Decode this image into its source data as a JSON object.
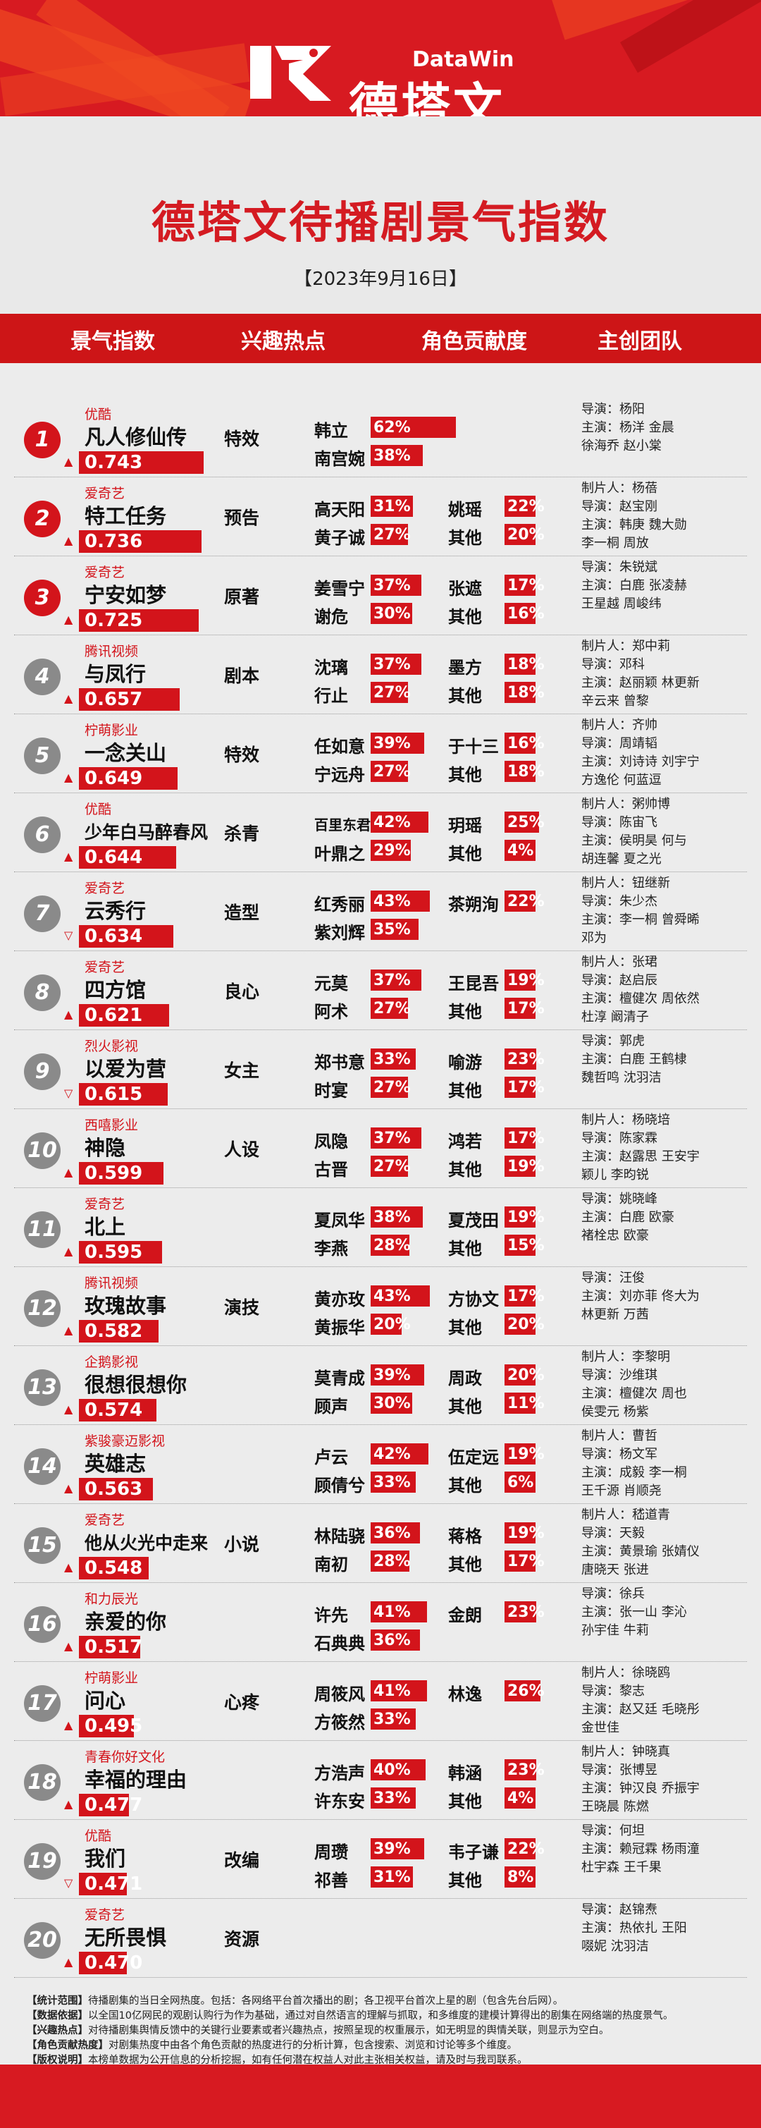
{
  "brand": {
    "name": "德塔文",
    "en": "DataWin"
  },
  "title": "德塔文待播剧景气指数",
  "date": "【2023年9月16日】",
  "columns": [
    "景气指数",
    "兴趣热点",
    "角色贡献度",
    "主创团队"
  ],
  "rows": [
    {
      "rank": "1",
      "platform": "优酷",
      "name": "凡人修仙传",
      "score": "0.743",
      "trend": "▲",
      "tag": "特效",
      "roles": [
        {
          "name": "韩立",
          "pct": "62%"
        },
        {
          "name": "南宫婉",
          "pct": "38%"
        }
      ],
      "crew": [
        "导演：杨阳",
        "主演：杨洋  金晨",
        "         徐海乔  赵小棠"
      ]
    },
    {
      "rank": "2",
      "platform": "爱奇艺",
      "name": "特工任务",
      "score": "0.736",
      "trend": "▲",
      "tag": "预告",
      "roles": [
        {
          "name": "高天阳",
          "pct": "31%"
        },
        {
          "name": "黄子诚",
          "pct": "27%"
        },
        {
          "name": "姚瑶",
          "pct": "22%"
        },
        {
          "name": "其他",
          "pct": "20%"
        }
      ],
      "crew": [
        "制片人：杨蓓",
        "导演：赵宝刚",
        "主演：韩庚  魏大勋",
        "         李一桐  周放"
      ]
    },
    {
      "rank": "3",
      "platform": "爱奇艺",
      "name": "宁安如梦",
      "score": "0.725",
      "trend": "▲",
      "tag": "原著",
      "roles": [
        {
          "name": "姜雪宁",
          "pct": "37%"
        },
        {
          "name": "谢危",
          "pct": "30%"
        },
        {
          "name": "张遮",
          "pct": "17%"
        },
        {
          "name": "其他",
          "pct": "16%"
        }
      ],
      "crew": [
        "导演：朱锐斌",
        "主演：白鹿  张凌赫",
        "         王星越  周峻纬"
      ]
    },
    {
      "rank": "4",
      "platform": "腾讯视频",
      "name": "与凤行",
      "score": "0.657",
      "trend": "▲",
      "tag": "剧本",
      "roles": [
        {
          "name": "沈璃",
          "pct": "37%"
        },
        {
          "name": "行止",
          "pct": "27%"
        },
        {
          "name": "墨方",
          "pct": "18%"
        },
        {
          "name": "其他",
          "pct": "18%"
        }
      ],
      "crew": [
        "制片人：郑中莉",
        "导演：邓科",
        "主演：赵丽颖  林更新",
        "         辛云来  曾黎"
      ]
    },
    {
      "rank": "5",
      "platform": "柠萌影业",
      "name": "一念关山",
      "score": "0.649",
      "trend": "▲",
      "tag": "特效",
      "roles": [
        {
          "name": "任如意",
          "pct": "39%"
        },
        {
          "name": "宁远舟",
          "pct": "27%"
        },
        {
          "name": "于十三",
          "pct": "16%"
        },
        {
          "name": "其他",
          "pct": "18%"
        }
      ],
      "crew": [
        "制片人：齐帅",
        "导演：周靖韬",
        "主演：刘诗诗  刘宇宁",
        "         方逸伦  何蓝逗"
      ]
    },
    {
      "rank": "6",
      "platform": "优酷",
      "name": "少年白马醉春风",
      "score": "0.644",
      "trend": "▲",
      "tag": "杀青",
      "roles": [
        {
          "name": "百里东君",
          "pct": "42%"
        },
        {
          "name": "叶鼎之",
          "pct": "29%"
        },
        {
          "name": "玥瑶",
          "pct": "25%"
        },
        {
          "name": "其他",
          "pct": "4%"
        }
      ],
      "crew": [
        "制片人：粥帅博",
        "导演：陈宙飞",
        "主演：侯明昊  何与",
        "         胡连馨  夏之光"
      ]
    },
    {
      "rank": "7",
      "platform": "爱奇艺",
      "name": "云秀行",
      "score": "0.634",
      "trend": "▽",
      "tag": "造型",
      "roles": [
        {
          "name": "红秀丽",
          "pct": "43%"
        },
        {
          "name": "紫刘辉",
          "pct": "35%"
        },
        {
          "name": "茶朔洵",
          "pct": "22%"
        }
      ],
      "crew": [
        "制片人：钮继新",
        "导演：朱少杰",
        "主演：李一桐  曾舜晞",
        "         邓为"
      ]
    },
    {
      "rank": "8",
      "platform": "爱奇艺",
      "name": "四方馆",
      "score": "0.621",
      "trend": "▲",
      "tag": "良心",
      "roles": [
        {
          "name": "元莫",
          "pct": "37%"
        },
        {
          "name": "阿术",
          "pct": "27%"
        },
        {
          "name": "王昆吾",
          "pct": "19%"
        },
        {
          "name": "其他",
          "pct": "17%"
        }
      ],
      "crew": [
        "制片人：张珺",
        "导演：赵启辰",
        "主演：檀健次  周依然",
        "         杜淳  阚清子"
      ]
    },
    {
      "rank": "9",
      "platform": "烈火影视",
      "name": "以爱为营",
      "score": "0.615",
      "trend": "▽",
      "tag": "女主",
      "roles": [
        {
          "name": "郑书意",
          "pct": "33%"
        },
        {
          "name": "时宴",
          "pct": "27%"
        },
        {
          "name": "喻游",
          "pct": "23%"
        },
        {
          "name": "其他",
          "pct": "17%"
        }
      ],
      "crew": [
        "导演：郭虎",
        "主演：白鹿  王鹤棣",
        "         魏哲鸣  沈羽洁"
      ]
    },
    {
      "rank": "10",
      "platform": "西嘻影业",
      "name": "神隐",
      "score": "0.599",
      "trend": "▲",
      "tag": "人设",
      "roles": [
        {
          "name": "凤隐",
          "pct": "37%"
        },
        {
          "name": "古晋",
          "pct": "27%"
        },
        {
          "name": "鸿若",
          "pct": "17%"
        },
        {
          "name": "其他",
          "pct": "19%"
        }
      ],
      "crew": [
        "制片人：杨晓培",
        "导演：陈家霖",
        "主演：赵露思  王安宇",
        "         颖儿  李昀锐"
      ]
    },
    {
      "rank": "11",
      "platform": "爱奇艺",
      "name": "北上",
      "score": "0.595",
      "trend": "▲",
      "tag": "",
      "roles": [
        {
          "name": "夏凤华",
          "pct": "38%"
        },
        {
          "name": "李燕",
          "pct": "28%"
        },
        {
          "name": "夏茂田",
          "pct": "19%"
        },
        {
          "name": "其他",
          "pct": "15%"
        }
      ],
      "crew": [
        "导演：姚晓峰",
        "主演：白鹿  欧豪",
        "         褚栓忠  欧豪"
      ]
    },
    {
      "rank": "12",
      "platform": "腾讯视频",
      "name": "玫瑰故事",
      "score": "0.582",
      "trend": "▲",
      "tag": "演技",
      "roles": [
        {
          "name": "黄亦玫",
          "pct": "43%"
        },
        {
          "name": "黄振华",
          "pct": "20%"
        },
        {
          "name": "方协文",
          "pct": "17%"
        },
        {
          "name": "其他",
          "pct": "20%"
        }
      ],
      "crew": [
        "导演：汪俊",
        "主演：刘亦菲  佟大为",
        "         林更新  万茜"
      ]
    },
    {
      "rank": "13",
      "platform": "企鹅影视",
      "name": "很想很想你",
      "score": "0.574",
      "trend": "▲",
      "tag": "",
      "roles": [
        {
          "name": "莫青成",
          "pct": "39%"
        },
        {
          "name": "顾声",
          "pct": "30%"
        },
        {
          "name": "周政",
          "pct": "20%"
        },
        {
          "name": "其他",
          "pct": "11%"
        }
      ],
      "crew": [
        "制片人：李黎明",
        "导演：沙维琪",
        "主演：檀健次  周也",
        "         侯雯元  杨紫"
      ]
    },
    {
      "rank": "14",
      "platform": "紫骏豪迈影视",
      "name": "英雄志",
      "score": "0.563",
      "trend": "▲",
      "tag": "",
      "roles": [
        {
          "name": "卢云",
          "pct": "42%"
        },
        {
          "name": "顾倩兮",
          "pct": "33%"
        },
        {
          "name": "伍定远",
          "pct": "19%"
        },
        {
          "name": "其他",
          "pct": "6%"
        }
      ],
      "crew": [
        "制片人：曹哲",
        "导演：杨文军",
        "主演：成毅  李一桐",
        "         王千源  肖顺尧"
      ]
    },
    {
      "rank": "15",
      "platform": "爱奇艺",
      "name": "他从火光中走来",
      "score": "0.548",
      "trend": "▲",
      "tag": "小说",
      "roles": [
        {
          "name": "林陆骁",
          "pct": "36%"
        },
        {
          "name": "南初",
          "pct": "28%"
        },
        {
          "name": "蒋格",
          "pct": "19%"
        },
        {
          "name": "其他",
          "pct": "17%"
        }
      ],
      "crew": [
        "制片人：嵇道青",
        "导演：天毅",
        "主演：黄景瑜  张婧仪",
        "         唐晓天  张进"
      ]
    },
    {
      "rank": "16",
      "platform": "和力辰光",
      "name": "亲爱的你",
      "score": "0.517",
      "trend": "▲",
      "tag": "",
      "roles": [
        {
          "name": "许先",
          "pct": "41%"
        },
        {
          "name": "石典典",
          "pct": "36%"
        },
        {
          "name": "金朗",
          "pct": "23%"
        }
      ],
      "crew": [
        "导演：徐兵",
        "主演：张一山  李沁",
        "         孙宇佳  牛莉"
      ]
    },
    {
      "rank": "17",
      "platform": "柠萌影业",
      "name": "问心",
      "score": "0.495",
      "trend": "▲",
      "tag": "心疼",
      "roles": [
        {
          "name": "周筱风",
          "pct": "41%"
        },
        {
          "name": "方筱然",
          "pct": "33%"
        },
        {
          "name": "林逸",
          "pct": "26%"
        }
      ],
      "crew": [
        "制片人：徐晓鸥",
        "导演：黎志",
        "主演：赵又廷  毛晓彤",
        "         金世佳"
      ]
    },
    {
      "rank": "18",
      "platform": "青春你好文化",
      "name": "幸福的理由",
      "score": "0.477",
      "trend": "▲",
      "tag": "",
      "roles": [
        {
          "name": "方浩声",
          "pct": "40%"
        },
        {
          "name": "许东安",
          "pct": "33%"
        },
        {
          "name": "韩涵",
          "pct": "23%"
        },
        {
          "name": "其他",
          "pct": "4%"
        }
      ],
      "crew": [
        "制片人：钟晓真",
        "导演：张博昱",
        "主演：钟汉良  乔振宇",
        "         王晓晨  陈燃"
      ]
    },
    {
      "rank": "19",
      "platform": "优酷",
      "name": "我们",
      "score": "0.471",
      "trend": "▽",
      "tag": "改编",
      "roles": [
        {
          "name": "周瓒",
          "pct": "39%"
        },
        {
          "name": "祁善",
          "pct": "31%"
        },
        {
          "name": "韦子谦",
          "pct": "22%"
        },
        {
          "name": "其他",
          "pct": "8%"
        }
      ],
      "crew": [
        "导演：何坦",
        "主演：赖冠霖  杨雨潼",
        "         杜宇森  王千果"
      ]
    },
    {
      "rank": "20",
      "platform": "爱奇艺",
      "name": "无所畏惧",
      "score": "0.470",
      "trend": "▲",
      "tag": "资源",
      "roles": [],
      "crew": [
        "导演：赵锦焘",
        "主演：热依扎  王阳",
        "         啜妮  沈羽洁"
      ]
    }
  ],
  "notes": [
    {
      "label": "【统计范围】",
      "text": "待播剧集的当日全网热度。包括：各网络平台首次播出的剧；各卫视平台首次上星的剧（包含先台后网）。"
    },
    {
      "label": "【数据依据】",
      "text": "以全国10亿网民的观剧认购行为作为基础，通过对自然语言的理解与抓取，和多维度的建模计算得出的剧集在网络端的热度景气。"
    },
    {
      "label": "【兴趣热点】",
      "text": "对待播剧集舆情反馈中的关键行业要素或者兴趣热点，按照呈现的权重展示，如无明显的舆情关联，则显示为空白。"
    },
    {
      "label": "【角色贡献热度】",
      "text": "对剧集热度中由各个角色贡献的热度进行的分析计算，包含搜索、浏览和讨论等多个维度。"
    },
    {
      "label": "【版权说明】",
      "text": "本榜单数据为公开信息的分析挖掘，如有任何潜在权益人对此主张相关权益，请及时与我司联系。"
    }
  ]
}
